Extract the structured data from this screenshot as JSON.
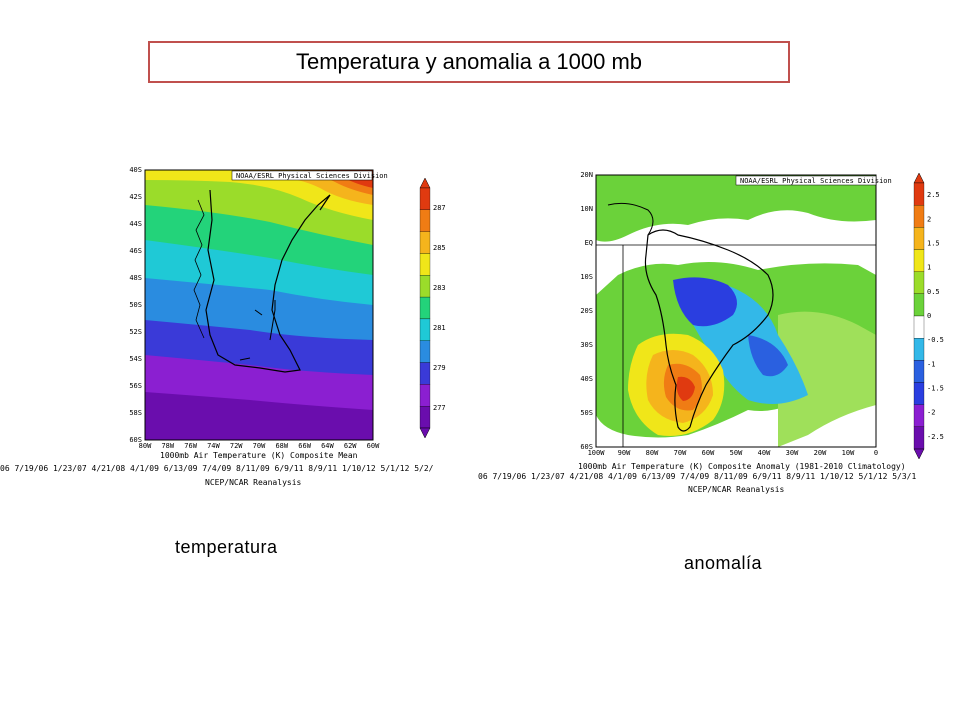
{
  "slide_title": "Temperatura y anomalia a 1000 mb",
  "left_map": {
    "header": "NOAA/ESRL Physical Sciences Division",
    "lat_ticks": [
      "40S",
      "42S",
      "44S",
      "46S",
      "48S",
      "50S",
      "52S",
      "54S",
      "56S",
      "58S",
      "60S"
    ],
    "lon_ticks": [
      "80W",
      "78W",
      "76W",
      "74W",
      "72W",
      "70W",
      "68W",
      "66W",
      "64W",
      "62W",
      "60W"
    ],
    "caption": "1000mb Air Temperature (K) Composite Mean",
    "dates": "06 7/19/06 1/23/07 4/21/08 4/1/09 6/13/09 7/4/09 8/11/09 6/9/11 8/9/11 1/10/12 5/1/12 5/2/",
    "source": "NCEP/NCAR Reanalysis",
    "colorbar_labels": [
      "287",
      "285",
      "283",
      "281",
      "279",
      "277"
    ],
    "label": "temperatura"
  },
  "right_map": {
    "header": "NOAA/ESRL Physical Sciences Division",
    "lat_ticks": [
      "20N",
      "10N",
      "EQ",
      "10S",
      "20S",
      "30S",
      "40S",
      "50S",
      "60S"
    ],
    "lon_ticks": [
      "100W",
      "90W",
      "80W",
      "70W",
      "60W",
      "50W",
      "40W",
      "30W",
      "20W",
      "10W",
      "0"
    ],
    "caption": "1000mb Air Temperature (K) Composite Anomaly (1981-2010 Climatology)",
    "dates": "06 7/19/06 1/23/07 4/21/08 4/1/09 6/13/09 7/4/09 8/11/09 6/9/11 8/9/11 1/10/12 5/1/12 5/3/1",
    "source": "NCEP/NCAR Reanalysis",
    "colorbar_labels": [
      "2.5",
      "2",
      "1.5",
      "1",
      "0.5",
      "0",
      "-0.5",
      "-1",
      "-1.5",
      "-2",
      "-2.5"
    ],
    "label": "anomalía"
  }
}
